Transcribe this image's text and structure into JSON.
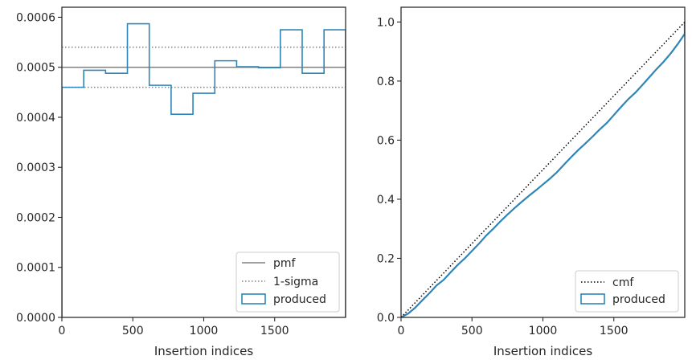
{
  "chart_data": [
    {
      "type": "step",
      "xlabel": "Insertion indices",
      "ylabel": "",
      "xlim": [
        0,
        2000
      ],
      "ylim": [
        0,
        0.00062
      ],
      "xticks": [
        0,
        500,
        1000,
        1500
      ],
      "xtick_labels": [
        "0",
        "500",
        "1000",
        "1500"
      ],
      "yticks": [
        0,
        0.0001,
        0.0002,
        0.0003,
        0.0004,
        0.0005,
        0.0006
      ],
      "ytick_labels": [
        "0.0000",
        "0.0001",
        "0.0002",
        "0.0003",
        "0.0004",
        "0.0005",
        "0.0006"
      ],
      "pmf": 0.0005,
      "sigma_band": [
        0.00046,
        0.00054
      ],
      "bin_edges": [
        0,
        154,
        308,
        462,
        616,
        770,
        924,
        1078,
        1232,
        1386,
        1540,
        1694,
        1848,
        2000
      ],
      "values": [
        0.00046,
        0.000494,
        0.000488,
        0.000587,
        0.000464,
        0.000406,
        0.000448,
        0.000513,
        0.000501,
        0.000499,
        0.000575,
        0.000488,
        0.000575
      ],
      "legend": {
        "position": "bottom-right",
        "entries": [
          "pmf",
          "1-sigma",
          "produced"
        ]
      },
      "colors": {
        "pmf": "#808080",
        "sigma": "#808080",
        "produced": "#2e86b7"
      },
      "grid": false
    },
    {
      "type": "line",
      "xlabel": "Insertion indices",
      "ylabel": "",
      "xlim": [
        0,
        2000
      ],
      "ylim": [
        0,
        1.05
      ],
      "xticks": [
        0,
        500,
        1000,
        1500
      ],
      "xtick_labels": [
        "0",
        "500",
        "1000",
        "1500"
      ],
      "yticks": [
        0,
        0.2,
        0.4,
        0.6,
        0.8,
        1.0
      ],
      "ytick_labels": [
        "0.0",
        "0.2",
        "0.4",
        "0.6",
        "0.8",
        "1.0"
      ],
      "cmf": {
        "x": [
          0,
          2000
        ],
        "y": [
          0,
          1.0
        ]
      },
      "produced": {
        "x": [
          0,
          50,
          100,
          150,
          200,
          250,
          300,
          350,
          400,
          450,
          500,
          550,
          600,
          650,
          700,
          750,
          800,
          850,
          900,
          950,
          1000,
          1050,
          1100,
          1150,
          1200,
          1250,
          1300,
          1350,
          1400,
          1450,
          1500,
          1550,
          1600,
          1650,
          1700,
          1750,
          1800,
          1850,
          1900,
          1950,
          2000
        ],
        "y": [
          0,
          0.013,
          0.033,
          0.058,
          0.082,
          0.108,
          0.127,
          0.153,
          0.178,
          0.2,
          0.225,
          0.25,
          0.277,
          0.3,
          0.325,
          0.348,
          0.37,
          0.391,
          0.411,
          0.43,
          0.45,
          0.47,
          0.492,
          0.518,
          0.543,
          0.567,
          0.589,
          0.612,
          0.636,
          0.658,
          0.685,
          0.712,
          0.738,
          0.76,
          0.786,
          0.813,
          0.84,
          0.865,
          0.893,
          0.925,
          0.96
        ]
      },
      "legend": {
        "position": "bottom-right",
        "entries": [
          "cmf",
          "produced"
        ]
      },
      "colors": {
        "cmf": "#000000",
        "produced": "#2e86b7"
      },
      "grid": false
    }
  ]
}
